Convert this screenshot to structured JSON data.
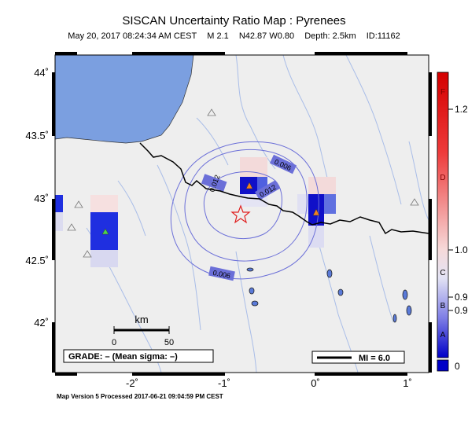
{
  "header": {
    "title": "SISCAN Uncertainty Ratio Map : Pyrenees",
    "date": "May 20, 2017 08:24:34 AM CEST",
    "magnitude": "M 2.1",
    "location": "N42.87 W0.80",
    "depth": "Depth: 2.5km",
    "event_id": "ID:11162"
  },
  "axes": {
    "lat_labels": [
      "44˚",
      "43.5˚",
      "43˚",
      "42.5˚",
      "42˚"
    ],
    "lon_labels": [
      "-2˚",
      "-1˚",
      "0˚",
      "1˚"
    ]
  },
  "contours": [
    {
      "label": "0.012"
    },
    {
      "label": "0.012"
    },
    {
      "label": "0.006"
    },
    {
      "label": "0.006"
    }
  ],
  "scalebar": {
    "unit": "km",
    "ticks": [
      "0",
      "50"
    ]
  },
  "grade_box": {
    "text": "GRADE: – (Mean sigma: –)"
  },
  "mi_box": {
    "text": "MI = 6.0"
  },
  "colorbar": {
    "letter_labels": [
      "F",
      "D",
      "C",
      "B",
      "A"
    ],
    "value_labels": [
      "1.2",
      "1.0",
      "0.9",
      "0.9",
      "0"
    ]
  },
  "footer": {
    "text": "Map Version 5 Processed 2017-06-21 09:04:59 PM CEST"
  },
  "colors": {
    "land": "#eeeeee",
    "sea": "#7b9fe0",
    "contour": "#6b6fd8",
    "river": "#a9bde8",
    "border": "#000000",
    "epicenter": "#e02020",
    "colorbar_top": "#d40000",
    "colorbar_bottom": "#0000c8"
  }
}
